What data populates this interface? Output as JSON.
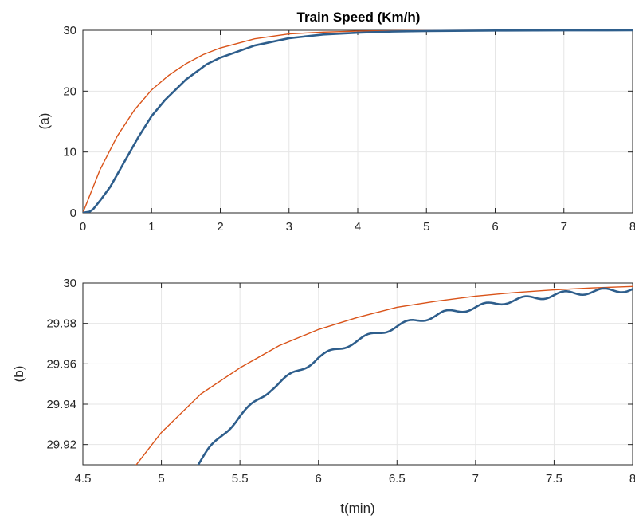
{
  "chart_data": [
    {
      "type": "line",
      "title": "Train Speed (Km/h)",
      "xlabel": "",
      "ylabel": "(a)",
      "xlim": [
        0,
        8
      ],
      "ylim": [
        0,
        30
      ],
      "xticks": [
        0,
        1,
        2,
        3,
        4,
        5,
        6,
        7,
        8
      ],
      "yticks": [
        0,
        10,
        20,
        30
      ],
      "grid": true,
      "series": [
        {
          "color": "#D95319",
          "x": [
            0,
            0.25,
            0.5,
            0.75,
            1.0,
            1.25,
            1.5,
            1.75,
            2.0,
            2.5,
            3.0,
            3.5,
            4.0,
            4.5,
            5.0,
            6.0,
            7.0,
            8.0
          ],
          "y": [
            0,
            7.1,
            12.6,
            16.9,
            20.2,
            22.6,
            24.5,
            26.0,
            27.1,
            28.6,
            29.4,
            29.7,
            29.86,
            29.93,
            29.97,
            29.99,
            30.0,
            30.0
          ]
        },
        {
          "color": "#2E5E8C",
          "x": [
            0,
            0.1,
            0.15,
            0.25,
            0.4,
            0.6,
            0.8,
            1.0,
            1.2,
            1.5,
            1.8,
            2.0,
            2.5,
            3.0,
            3.5,
            4.0,
            4.5,
            5.0,
            6.0,
            7.0,
            8.0
          ],
          "y": [
            0,
            0.2,
            0.6,
            2.0,
            4.3,
            8.3,
            12.3,
            15.9,
            18.6,
            21.9,
            24.4,
            25.5,
            27.5,
            28.7,
            29.3,
            29.6,
            29.8,
            29.88,
            29.96,
            29.99,
            30.0
          ]
        }
      ]
    },
    {
      "type": "line",
      "title": "",
      "xlabel": "t(min)",
      "ylabel": "(b)",
      "xlim": [
        4.5,
        8
      ],
      "ylim": [
        29.91,
        30
      ],
      "xticks": [
        4.5,
        5,
        5.5,
        6,
        6.5,
        7,
        7.5,
        8
      ],
      "xtick_labels": [
        "4.5",
        "5",
        "5.5",
        "6",
        "6.5",
        "7",
        "7.5",
        "8"
      ],
      "yticks": [
        29.92,
        29.94,
        29.96,
        29.98,
        30
      ],
      "ytick_labels": [
        "29.92",
        "29.94",
        "29.96",
        "29.98",
        "30"
      ],
      "grid": true,
      "series": [
        {
          "color": "#D95319",
          "x": [
            4.84,
            5.0,
            5.25,
            5.5,
            5.75,
            6.0,
            6.25,
            6.5,
            6.75,
            7.0,
            7.25,
            7.5,
            7.75,
            8.0
          ],
          "y": [
            29.91,
            29.926,
            29.945,
            29.958,
            29.969,
            29.977,
            29.983,
            29.988,
            29.991,
            29.9935,
            29.9953,
            29.9966,
            29.9976,
            29.9983
          ]
        },
        {
          "color": "#2E5E8C",
          "ripple": 0.0025,
          "ripple_period": 0.25,
          "x": [
            5.23,
            5.3,
            5.4,
            5.5,
            5.6,
            5.7,
            5.8,
            5.9,
            6.0,
            6.2,
            6.4,
            6.6,
            6.8,
            7.0,
            7.2,
            7.4,
            7.6,
            7.8,
            8.0
          ],
          "y": [
            29.91,
            29.917,
            29.926,
            29.934,
            29.941,
            29.948,
            29.953,
            29.958,
            29.963,
            29.97,
            29.976,
            29.981,
            29.985,
            29.988,
            29.991,
            29.993,
            29.995,
            29.996,
            29.997
          ]
        }
      ]
    }
  ]
}
